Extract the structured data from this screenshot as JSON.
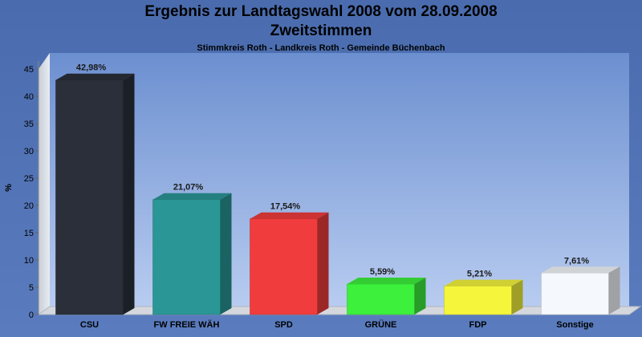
{
  "header": {
    "title_line1": "Ergebnis zur Landtagswahl 2008 vom 28.09.2008",
    "title_line2": "Zweitstimmen",
    "subtitle": "Stimmkreis Roth - Landkreis Roth - Gemeinde Büchenbach"
  },
  "chart_data": {
    "type": "bar",
    "title": "Ergebnis zur Landtagswahl 2008 vom 28.09.2008",
    "subtitle": "Zweitstimmen",
    "ylabel": "%",
    "xlabel": "",
    "ylim": [
      0,
      45
    ],
    "yticks": [
      0,
      5,
      10,
      15,
      20,
      25,
      30,
      35,
      40,
      45
    ],
    "grid": false,
    "categories": [
      "CSU",
      "FW FREIE WÄH",
      "SPD",
      "GRÜNE",
      "FDP",
      "Sonstige"
    ],
    "values": [
      42.98,
      21.07,
      17.54,
      5.59,
      5.21,
      7.61
    ],
    "value_labels": [
      "42,98%",
      "21,07%",
      "17,54%",
      "5,59%",
      "5,21%",
      "7,61%"
    ],
    "colors": [
      "#2a2f3a",
      "#2a9696",
      "#f03c3c",
      "#3cf03c",
      "#f5f53c",
      "#f5f8fc"
    ]
  }
}
